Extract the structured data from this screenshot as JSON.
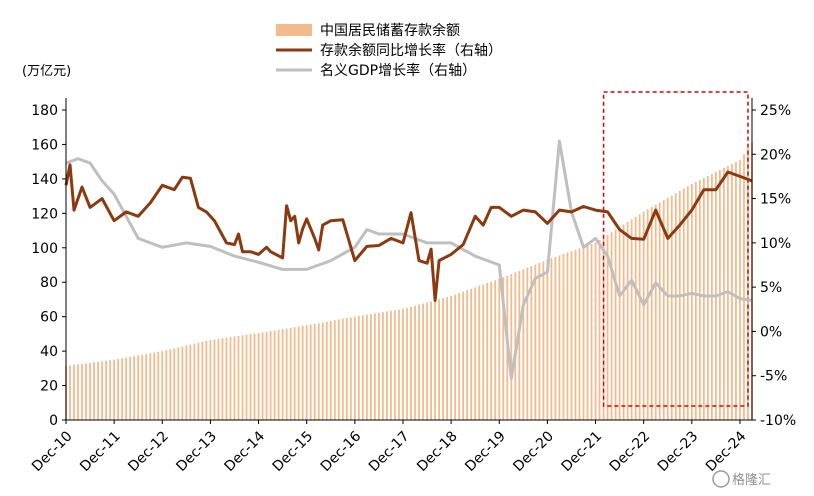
{
  "chart_data": {
    "type": "bar+line",
    "unit_label": "(万亿元)",
    "x_ticks": [
      "Dec-10",
      "Dec-11",
      "Dec-12",
      "Dec-13",
      "Dec-14",
      "Dec-15",
      "Dec-16",
      "Dec-17",
      "Dec-18",
      "Dec-19",
      "Dec-20",
      "Dec-21",
      "Dec-22",
      "Dec-23",
      "Dec-24"
    ],
    "y_left": {
      "min": 0,
      "max": 180,
      "ticks": [
        "0",
        "20",
        "40",
        "60",
        "80",
        "100",
        "120",
        "140",
        "160",
        "180"
      ]
    },
    "y_right": {
      "min": -10,
      "max": 25,
      "ticks": [
        "-10%",
        "-5%",
        "0%",
        "5%",
        "10%",
        "15%",
        "20%",
        "25%"
      ]
    },
    "legend": [
      {
        "label": "中国居民储蓄存款余额",
        "color": "#f3ba8c",
        "kind": "bar"
      },
      {
        "label": "存款余额同比增长率（右轴）",
        "color": "#8b3a0f",
        "kind": "line"
      },
      {
        "label": "名义GDP增长率（右轴）",
        "color": "#bfbfbf",
        "kind": "line"
      }
    ],
    "highlight": {
      "from": "2022-03",
      "to": "2024-12",
      "color": "#e00000"
    },
    "series": [
      {
        "name": "中国居民储蓄存款余额",
        "axis": "left",
        "color": "#f3ba8c",
        "anchors": [
          [
            "2010-12",
            31.5
          ],
          [
            "2011-12",
            35
          ],
          [
            "2012-12",
            40
          ],
          [
            "2013-12",
            46.5
          ],
          [
            "2014-12",
            50.5
          ],
          [
            "2015-12",
            55
          ],
          [
            "2016-12",
            60
          ],
          [
            "2017-12",
            64.5
          ],
          [
            "2018-12",
            72
          ],
          [
            "2019-12",
            82
          ],
          [
            "2020-12",
            93
          ],
          [
            "2021-12",
            103
          ],
          [
            "2022-12",
            121
          ],
          [
            "2023-12",
            137
          ],
          [
            "2024-12",
            151
          ],
          [
            "2025-03",
            161
          ]
        ]
      },
      {
        "name": "存款余额同比增长率（右轴）",
        "axis": "right",
        "color": "#8b3a0f",
        "anchors": [
          [
            "2010-12",
            16.5
          ],
          [
            "2011-01",
            18.8
          ],
          [
            "2011-02",
            13.7
          ],
          [
            "2011-04",
            16.3
          ],
          [
            "2011-06",
            14.0
          ],
          [
            "2011-09",
            15.0
          ],
          [
            "2011-12",
            12.5
          ],
          [
            "2012-03",
            13.5
          ],
          [
            "2012-06",
            13.0
          ],
          [
            "2012-09",
            14.5
          ],
          [
            "2012-12",
            16.5
          ],
          [
            "2013-03",
            16.0
          ],
          [
            "2013-05",
            17.4
          ],
          [
            "2013-07",
            17.3
          ],
          [
            "2013-09",
            14.0
          ],
          [
            "2013-11",
            13.5
          ],
          [
            "2014-01",
            12.5
          ],
          [
            "2014-04",
            10.0
          ],
          [
            "2014-06",
            9.8
          ],
          [
            "2014-07",
            11.0
          ],
          [
            "2014-08",
            9.0
          ],
          [
            "2014-10",
            9.0
          ],
          [
            "2014-12",
            8.7
          ],
          [
            "2015-02",
            9.5
          ],
          [
            "2015-03",
            9.0
          ],
          [
            "2015-06",
            8.3
          ],
          [
            "2015-07",
            14.2
          ],
          [
            "2015-08",
            12.5
          ],
          [
            "2015-09",
            13.0
          ],
          [
            "2015-10",
            10.0
          ],
          [
            "2015-11",
            11.6
          ],
          [
            "2015-12",
            12.7
          ],
          [
            "2016-02",
            10.5
          ],
          [
            "2016-03",
            9.2
          ],
          [
            "2016-04",
            12.0
          ],
          [
            "2016-06",
            12.5
          ],
          [
            "2016-09",
            12.6
          ],
          [
            "2016-12",
            8.0
          ],
          [
            "2017-03",
            9.6
          ],
          [
            "2017-06",
            9.7
          ],
          [
            "2017-09",
            10.5
          ],
          [
            "2017-12",
            10.0
          ],
          [
            "2018-02",
            13.4
          ],
          [
            "2018-04",
            8.0
          ],
          [
            "2018-06",
            7.7
          ],
          [
            "2018-07",
            9.3
          ],
          [
            "2018-08",
            3.5
          ],
          [
            "2018-09",
            8.0
          ],
          [
            "2018-12",
            8.7
          ],
          [
            "2019-03",
            9.8
          ],
          [
            "2019-06",
            13.0
          ],
          [
            "2019-08",
            12.0
          ],
          [
            "2019-10",
            14.0
          ],
          [
            "2019-12",
            14.0
          ],
          [
            "2020-03",
            13.0
          ],
          [
            "2020-06",
            13.7
          ],
          [
            "2020-09",
            13.5
          ],
          [
            "2020-12",
            12.2
          ],
          [
            "2021-03",
            13.7
          ],
          [
            "2021-06",
            13.5
          ],
          [
            "2021-09",
            14.1
          ],
          [
            "2021-12",
            13.7
          ],
          [
            "2022-03",
            13.5
          ],
          [
            "2022-06",
            11.5
          ],
          [
            "2022-09",
            10.5
          ],
          [
            "2022-12",
            10.4
          ],
          [
            "2023-03",
            13.7
          ],
          [
            "2023-06",
            10.5
          ],
          [
            "2023-09",
            12.0
          ],
          [
            "2023-12",
            13.7
          ],
          [
            "2024-03",
            16.0
          ],
          [
            "2024-06",
            16.0
          ],
          [
            "2024-09",
            18.0
          ],
          [
            "2024-12",
            17.5
          ],
          [
            "2025-03",
            17.0
          ]
        ]
      },
      {
        "name": "名义GDP增长率（右轴）",
        "axis": "right",
        "color": "#bfbfbf",
        "anchors": [
          [
            "2010-12",
            19.0
          ],
          [
            "2011-03",
            19.5
          ],
          [
            "2011-06",
            19.0
          ],
          [
            "2011-09",
            17.0
          ],
          [
            "2011-12",
            15.5
          ],
          [
            "2012-06",
            10.5
          ],
          [
            "2012-12",
            9.5
          ],
          [
            "2013-06",
            10.0
          ],
          [
            "2013-12",
            9.6
          ],
          [
            "2014-06",
            8.5
          ],
          [
            "2014-12",
            7.8
          ],
          [
            "2015-06",
            7.0
          ],
          [
            "2015-12",
            7.0
          ],
          [
            "2016-06",
            8.0
          ],
          [
            "2016-12",
            9.5
          ],
          [
            "2017-03",
            11.5
          ],
          [
            "2017-06",
            11.0
          ],
          [
            "2017-12",
            11.0
          ],
          [
            "2018-06",
            10.0
          ],
          [
            "2018-12",
            10.0
          ],
          [
            "2019-06",
            8.5
          ],
          [
            "2019-12",
            7.5
          ],
          [
            "2020-03",
            -5.3
          ],
          [
            "2020-06",
            3.0
          ],
          [
            "2020-09",
            6.0
          ],
          [
            "2020-12",
            6.7
          ],
          [
            "2021-03",
            21.5
          ],
          [
            "2021-06",
            13.5
          ],
          [
            "2021-09",
            9.5
          ],
          [
            "2021-12",
            10.5
          ],
          [
            "2022-03",
            8.5
          ],
          [
            "2022-06",
            4.0
          ],
          [
            "2022-09",
            5.8
          ],
          [
            "2022-12",
            3.0
          ],
          [
            "2023-03",
            5.5
          ],
          [
            "2023-06",
            4.0
          ],
          [
            "2023-09",
            4.0
          ],
          [
            "2023-12",
            4.3
          ],
          [
            "2024-03",
            4.0
          ],
          [
            "2024-06",
            4.0
          ],
          [
            "2024-09",
            4.5
          ],
          [
            "2024-12",
            3.7
          ],
          [
            "2025-03",
            3.5
          ]
        ]
      }
    ]
  },
  "watermark": "格隆汇"
}
